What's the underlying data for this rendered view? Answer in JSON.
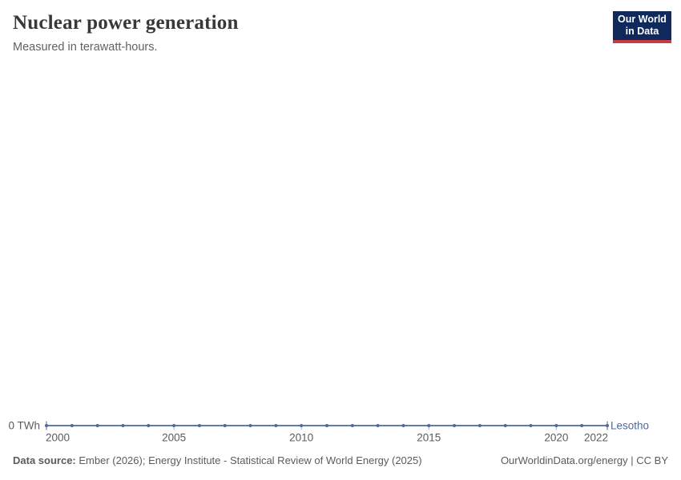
{
  "header": {
    "title": "Nuclear power generation",
    "subtitle": "Measured in terawatt-hours.",
    "logo_line1": "Our World",
    "logo_line2": "in Data"
  },
  "chart_data": {
    "type": "line",
    "title": "Nuclear power generation",
    "ylabel": "terawatt-hours",
    "x": [
      2000,
      2001,
      2002,
      2003,
      2004,
      2005,
      2006,
      2007,
      2008,
      2009,
      2010,
      2011,
      2012,
      2013,
      2014,
      2015,
      2016,
      2017,
      2018,
      2019,
      2020,
      2021,
      2022
    ],
    "series": [
      {
        "name": "Lesotho",
        "values": [
          0,
          0,
          0,
          0,
          0,
          0,
          0,
          0,
          0,
          0,
          0,
          0,
          0,
          0,
          0,
          0,
          0,
          0,
          0,
          0,
          0,
          0,
          0
        ]
      }
    ],
    "xlim": [
      2000,
      2022
    ],
    "ylim": [
      0,
      0
    ],
    "x_ticks": [
      2000,
      2005,
      2010,
      2015,
      2020,
      2022
    ],
    "y_axis_label": "0 TWh",
    "grid": false,
    "legend_position": "end-of-line",
    "entity_label": "Lesotho"
  },
  "footer": {
    "source_label": "Data source:",
    "source_text": " Ember (2026); Energy Institute - Statistical Review of World Energy (2025)",
    "right_text": "OurWorldinData.org/energy | CC BY"
  },
  "colors": {
    "line": "#4c6a9c",
    "axis_text": "#5b5b5b",
    "tick": "#a9b5c9",
    "title": "#383838",
    "subtitle": "#616161",
    "footer": "#5b5b5b",
    "logo_bg": "#10295c",
    "logo_accent": "#c93a41"
  }
}
